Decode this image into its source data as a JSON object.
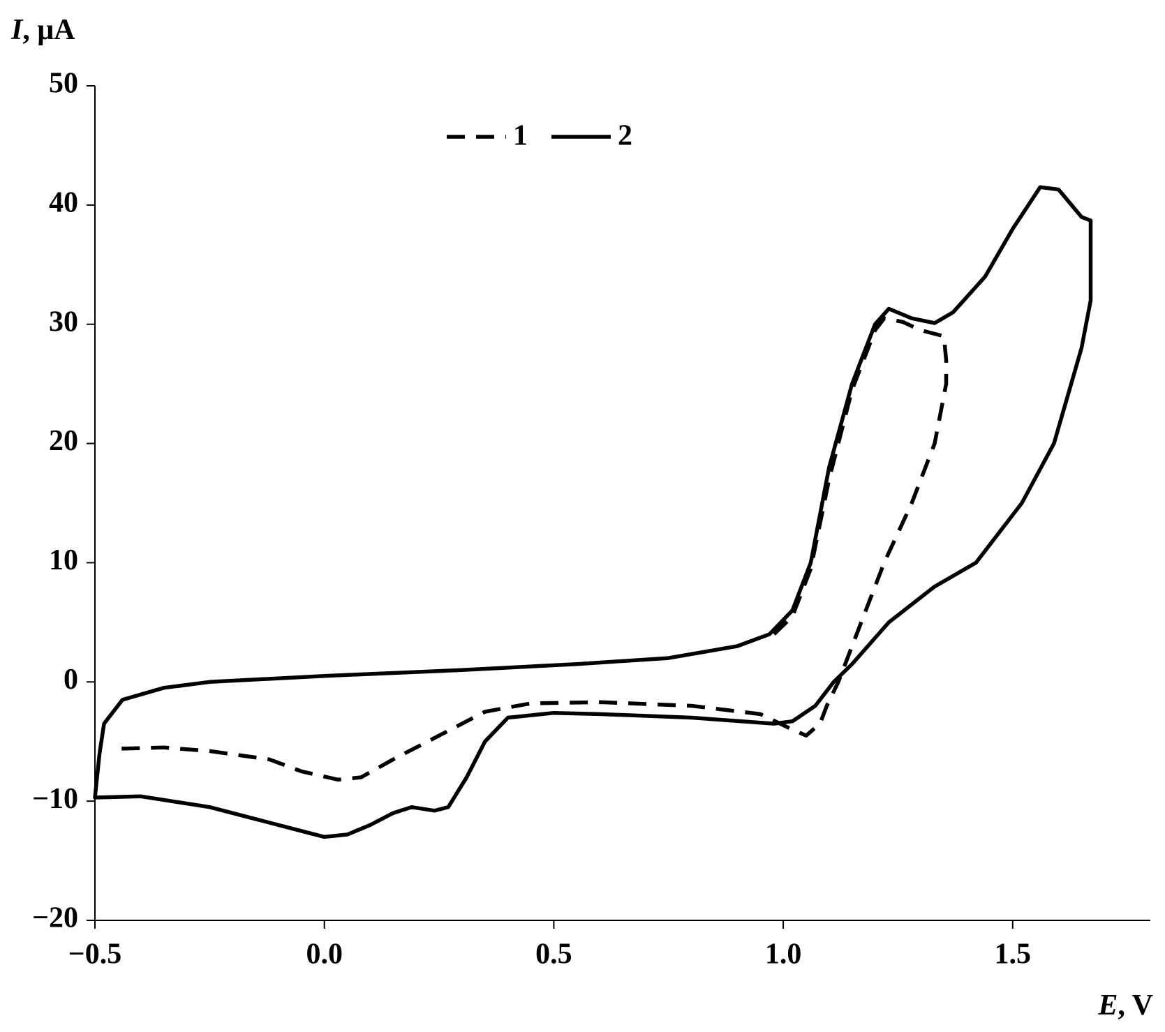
{
  "chart_data": {
    "type": "line",
    "xlabel": {
      "symbol": "E",
      "unit": ", V"
    },
    "ylabel": {
      "symbol": "I",
      "unit": ", μA"
    },
    "xlim": [
      -0.5,
      1.8
    ],
    "ylim": [
      -20,
      50
    ],
    "xticks": [
      {
        "value": -0.5,
        "label": "−0.5"
      },
      {
        "value": 0,
        "label": "0.0"
      },
      0.5,
      {
        "value": 1,
        "label": "1.0"
      },
      1.5
    ],
    "yticks": [
      {
        "value": -20,
        "label": "−20"
      },
      {
        "value": -10,
        "label": "−10"
      },
      0,
      10,
      20,
      30,
      40,
      50
    ],
    "series": [
      {
        "name": "1",
        "color": "#000000",
        "dash": true,
        "x": [
          0.98,
          1.02,
          1.06,
          1.1,
          1.15,
          1.2,
          1.22,
          1.26,
          1.3,
          1.35,
          1.355,
          1.355,
          1.33,
          1.28,
          1.22,
          1.17,
          1.12,
          1.095,
          1.08,
          1.05,
          1.02,
          0.95,
          0.8,
          0.6,
          0.45,
          0.35,
          0.25,
          0.15,
          0.08,
          0.03,
          -0.05,
          -0.12,
          -0.25,
          -0.35,
          -0.45
        ],
        "values": [
          4,
          5.5,
          9.5,
          17,
          24.5,
          29.5,
          30.5,
          30.2,
          29.5,
          29,
          27,
          25,
          20,
          15,
          10,
          5,
          0,
          -2,
          -3.5,
          -4.5,
          -4,
          -2.7,
          -2,
          -1.7,
          -1.8,
          -2.5,
          -4.5,
          -6.5,
          -8,
          -8.2,
          -7.5,
          -6.5,
          -5.8,
          -5.5,
          -5.6
        ]
      },
      {
        "name": "2",
        "color": "#000000",
        "dash": false,
        "x": [
          -0.5,
          -0.49,
          -0.48,
          -0.44,
          -0.35,
          -0.25,
          0,
          0.3,
          0.55,
          0.75,
          0.9,
          0.97,
          1.02,
          1.06,
          1.1,
          1.15,
          1.2,
          1.23,
          1.28,
          1.33,
          1.37,
          1.44,
          1.5,
          1.56,
          1.6,
          1.65,
          1.67,
          1.67,
          1.65,
          1.59,
          1.52,
          1.42,
          1.33,
          1.23,
          1.15,
          1.11,
          1.07,
          1.02,
          0.98,
          0.8,
          0.6,
          0.5,
          0.4,
          0.35,
          0.31,
          0.27,
          0.24,
          0.19,
          0.15,
          0.1,
          0.05,
          0,
          -0.05,
          -0.15,
          -0.25,
          -0.4,
          -0.5
        ],
        "values": [
          -9.7,
          -6,
          -3.5,
          -1.5,
          -0.5,
          0,
          0.5,
          1,
          1.5,
          2,
          3,
          4,
          6,
          10,
          18,
          25,
          30,
          31.3,
          30.5,
          30.1,
          31,
          34,
          38,
          41.5,
          41.3,
          39,
          38.7,
          32,
          28,
          20,
          15,
          10,
          8,
          5,
          1.5,
          0,
          -2,
          -3.3,
          -3.5,
          -3,
          -2.7,
          -2.6,
          -3,
          -5,
          -8,
          -10.5,
          -10.8,
          -10.5,
          -11,
          -12,
          -12.8,
          -13,
          -12.5,
          -11.5,
          -10.5,
          -9.6,
          -9.7
        ]
      }
    ]
  }
}
